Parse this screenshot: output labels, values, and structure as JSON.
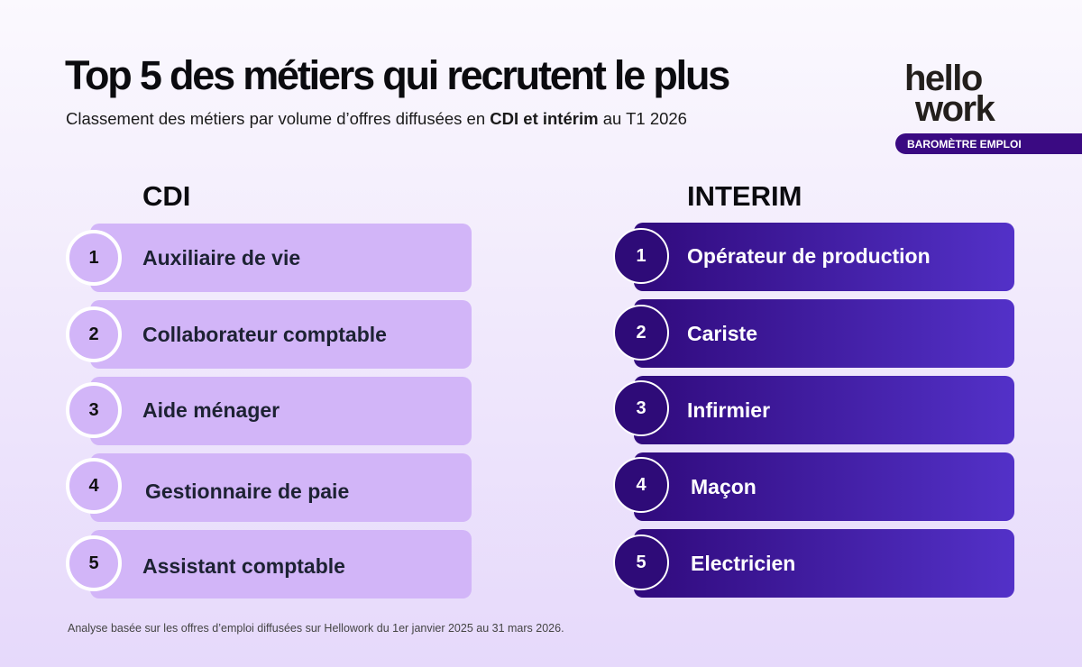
{
  "header": {
    "title": "Top 5 des métiers qui recrutent le plus",
    "subtitle_pre": "Classement des métiers par volume d’offres diffusées en ",
    "subtitle_bold": "CDI et intérim",
    "subtitle_post": " au T1 2026"
  },
  "logo": {
    "line1": "hello",
    "line2": "work",
    "badge": "BAROMÈTRE EMPLOI"
  },
  "cdi": {
    "title": "CDI",
    "items": [
      {
        "rank": "1",
        "label": "Auxiliaire de vie"
      },
      {
        "rank": "2",
        "label": "Collaborateur comptable"
      },
      {
        "rank": "3",
        "label": "Aide ménager"
      },
      {
        "rank": "4",
        "label": "Gestionnaire de paie"
      },
      {
        "rank": "5",
        "label": "Assistant comptable"
      }
    ]
  },
  "interim": {
    "title": "INTERIM",
    "items": [
      {
        "rank": "1",
        "label": "Opérateur de production"
      },
      {
        "rank": "2",
        "label": "Cariste"
      },
      {
        "rank": "3",
        "label": "Infirmier"
      },
      {
        "rank": "4",
        "label": "Maçon"
      },
      {
        "rank": "5",
        "label": "Electricien"
      }
    ]
  },
  "footer": "Analyse basée sur les offres d’emploi diffusées sur Hellowork du 1er janvier 2025 au 31 mars 2026.",
  "colors": {
    "cdi_bar": "#d2b5f8",
    "interim_start": "#300a7c",
    "interim_end": "#5331c8",
    "badge": "#3a0a82"
  }
}
